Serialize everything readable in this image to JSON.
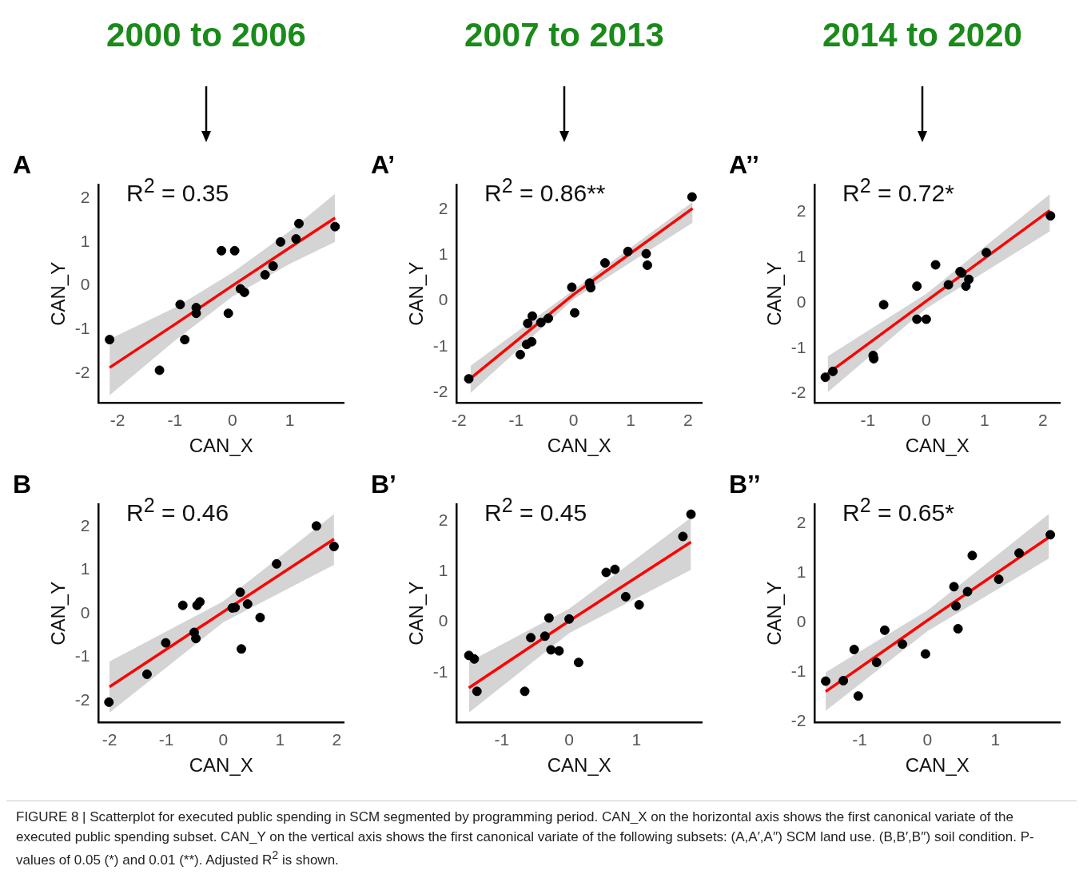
{
  "chart_data": [
    {
      "type": "scatter",
      "title": "A",
      "subtitle": "2000 to 2006",
      "xlabel": "CAN_X",
      "ylabel": "CAN_Y",
      "xlim": [
        -2.33,
        1.94
      ],
      "ylim": [
        -2.67,
        2.3
      ],
      "xticks": [
        -2,
        -1,
        0,
        1
      ],
      "yticks": [
        -2,
        -1,
        0,
        1,
        2
      ],
      "annotations": [
        "R$^{2}$ = 0.35"
      ],
      "series": [
        {
          "type": "line",
          "marker": "none",
          "color": "#ff0000",
          "x": [
            -2.14,
            -1,
            0,
            1,
            1.79
          ],
          "values": [
            -1.87,
            -0.88,
            0.0,
            0.87,
            1.55
          ],
          "lower": [
            -2.5,
            -1.25,
            -0.25,
            0.5,
            1.0
          ],
          "upper": [
            -1.22,
            -0.5,
            0.3,
            1.25,
            2.1
          ]
        },
        {
          "type": "scatter",
          "marker": "circle",
          "color": "#000000",
          "x": [
            -2.14,
            -1.27,
            -0.91,
            -0.83,
            -0.63,
            -0.63,
            -0.19,
            0.04,
            -0.07,
            0.14,
            0.21,
            0.57,
            0.71,
            0.84,
            1.11,
            1.16,
            1.79
          ],
          "values": [
            -1.23,
            -1.93,
            -0.43,
            -1.23,
            -0.5,
            -0.63,
            0.8,
            0.8,
            -0.63,
            -0.07,
            -0.15,
            0.25,
            0.45,
            1.0,
            1.07,
            1.42,
            1.35
          ]
        }
      ]
    },
    {
      "type": "scatter",
      "title": "A’",
      "subtitle": "2007 to 2013",
      "xlabel": "CAN_X",
      "ylabel": "CAN_Y",
      "xlim": [
        -2.04,
        2.24
      ],
      "ylim": [
        -2.22,
        2.53
      ],
      "xticks": [
        -2,
        -1,
        0,
        1,
        2
      ],
      "yticks": [
        -2,
        -1,
        0,
        1,
        2
      ],
      "annotations": [
        "R$^{2}$ = 0.86**"
      ],
      "series": [
        {
          "type": "line",
          "marker": "none",
          "color": "#ff0000",
          "x": [
            -1.8,
            0,
            2.08
          ],
          "values": [
            -1.69,
            0.14,
            2.02
          ],
          "lower": [
            -2.01,
            0.04,
            1.71
          ],
          "upper": [
            -1.42,
            0.24,
            2.16
          ]
        },
        {
          "type": "scatter",
          "marker": "circle",
          "color": "#000000",
          "x": [
            -1.83,
            -0.93,
            -0.82,
            -0.73,
            -0.8,
            -0.72,
            -0.57,
            -0.44,
            -0.03,
            0.02,
            0.28,
            0.3,
            0.55,
            0.95,
            1.27,
            1.29,
            2.07
          ],
          "values": [
            -1.7,
            -1.17,
            -0.95,
            -0.89,
            -0.49,
            -0.33,
            -0.47,
            -0.38,
            0.3,
            -0.26,
            0.39,
            0.29,
            0.83,
            1.08,
            1.03,
            0.78,
            2.27
          ]
        }
      ]
    },
    {
      "type": "scatter",
      "title": "A’’",
      "subtitle": "2014 to 2020",
      "xlabel": "CAN_X",
      "ylabel": "CAN_Y",
      "xlim": [
        -1.91,
        2.29
      ],
      "ylim": [
        -2.2,
        2.6
      ],
      "xticks": [
        -1,
        0,
        1,
        2
      ],
      "yticks": [
        -2,
        -1,
        0,
        1,
        2
      ],
      "annotations": [
        "R$^{2}$ = 0.72*"
      ],
      "series": [
        {
          "type": "line",
          "marker": "none",
          "color": "#ff0000",
          "x": [
            -1.69,
            0,
            2.12
          ],
          "values": [
            -1.56,
            0.04,
            2.04
          ],
          "lower": [
            -1.97,
            -0.12,
            1.58
          ],
          "upper": [
            -1.18,
            0.2,
            2.4
          ]
        },
        {
          "type": "scatter",
          "marker": "circle",
          "color": "#000000",
          "x": [
            -1.73,
            -1.6,
            -0.91,
            -0.9,
            -0.73,
            -0.16,
            -0.16,
            0.0,
            0.16,
            0.38,
            0.58,
            0.61,
            0.73,
            0.68,
            1.03,
            2.13
          ],
          "values": [
            -1.64,
            -1.51,
            -1.16,
            -1.23,
            -0.04,
            0.37,
            -0.36,
            -0.36,
            0.84,
            0.4,
            0.69,
            0.66,
            0.52,
            0.37,
            1.11,
            1.92
          ]
        }
      ]
    },
    {
      "type": "scatter",
      "title": "B",
      "xlabel": "CAN_X",
      "ylabel": "CAN_Y",
      "xlim": [
        -2.19,
        2.12
      ],
      "ylim": [
        -2.49,
        2.5
      ],
      "xticks": [
        -2,
        -1,
        0,
        1,
        2
      ],
      "yticks": [
        -2,
        -1,
        0,
        1,
        2
      ],
      "annotations": [
        "R$^{2}$ = 0.46"
      ],
      "series": [
        {
          "type": "line",
          "marker": "none",
          "color": "#ff0000",
          "x": [
            -2.0,
            0,
            1.95
          ],
          "values": [
            -1.68,
            0.04,
            1.71
          ],
          "lower": [
            -2.27,
            -0.2,
            1.12
          ],
          "upper": [
            -1.1,
            0.28,
            2.28
          ]
        },
        {
          "type": "scatter",
          "marker": "circle",
          "color": "#000000",
          "x": [
            -2.01,
            -1.34,
            -1.01,
            -0.71,
            -0.51,
            -0.48,
            -0.46,
            -0.41,
            0.16,
            0.21,
            0.3,
            0.43,
            0.32,
            0.65,
            0.94,
            1.64,
            1.95
          ],
          "values": [
            -2.03,
            -1.39,
            -0.67,
            0.19,
            -0.43,
            -0.57,
            0.19,
            0.27,
            0.13,
            0.14,
            0.49,
            0.22,
            -0.81,
            -0.09,
            1.14,
            2.01,
            1.54
          ]
        }
      ]
    },
    {
      "type": "scatter",
      "title": "B’",
      "xlabel": "CAN_X",
      "ylabel": "CAN_Y",
      "xlim": [
        -1.67,
        1.97
      ],
      "ylim": [
        -1.98,
        2.32
      ],
      "xticks": [
        -1,
        0,
        1
      ],
      "yticks": [
        -1,
        0,
        1,
        2
      ],
      "annotations": [
        "R$^{2}$ = 0.45"
      ],
      "series": [
        {
          "type": "line",
          "marker": "none",
          "color": "#ff0000",
          "x": [
            -1.49,
            0,
            1.81
          ],
          "values": [
            -1.3,
            0.02,
            1.58
          ],
          "lower": [
            -1.79,
            -0.22,
            1.03
          ],
          "upper": [
            -0.79,
            0.26,
            2.06
          ]
        },
        {
          "type": "scatter",
          "marker": "circle",
          "color": "#000000",
          "x": [
            -1.49,
            -1.41,
            -1.37,
            -0.66,
            -0.57,
            -0.36,
            -0.3,
            -0.27,
            -0.15,
            0.0,
            0.14,
            0.55,
            0.68,
            0.84,
            1.04,
            1.69,
            1.81
          ],
          "values": [
            -0.66,
            -0.73,
            -1.37,
            -1.37,
            -0.31,
            -0.28,
            0.08,
            -0.55,
            -0.57,
            0.06,
            -0.8,
            0.98,
            1.04,
            0.5,
            0.34,
            1.69,
            2.13
          ]
        }
      ]
    },
    {
      "type": "scatter",
      "title": "B’’",
      "xlabel": "CAN_X",
      "ylabel": "CAN_Y",
      "xlim": [
        -1.66,
        1.95
      ],
      "ylim": [
        -2.02,
        2.38
      ],
      "xticks": [
        -1,
        0,
        1
      ],
      "yticks": [
        -2,
        -1,
        0,
        1,
        2
      ],
      "annotations": [
        "R$^{2}$ = 0.65*",
        "FIGURE 8 | Scatterplot for executed public spending in SCM segmented by programming period. CAN_X on the horizontal axis shows the first canonical variate of the executed public spending subset. CAN_Y on the vertical axis shows the first canonical variate of the following subsets: (A,A′,A′′) SCM land use. (B,B′,B′′) soil condition. P-values of 0.05 (*) and 0.01 (**). Adjusted R$^{2}$ is shown."
      ],
      "series": [
        {
          "type": "line",
          "marker": "none",
          "color": "#ff0000",
          "x": [
            -1.5,
            0,
            1.79
          ],
          "values": [
            -1.4,
            0.04,
            1.72
          ],
          "lower": [
            -1.79,
            -0.18,
            1.29
          ],
          "upper": [
            -1.01,
            0.24,
            2.19
          ]
        },
        {
          "type": "scatter",
          "marker": "circle",
          "color": "#000000",
          "x": [
            -1.5,
            -1.24,
            -1.02,
            -1.08,
            -0.75,
            -0.63,
            -0.37,
            -0.03,
            0.39,
            0.42,
            0.45,
            0.59,
            0.66,
            1.05,
            1.35,
            1.81
          ],
          "values": [
            -1.19,
            -1.18,
            -1.49,
            -0.55,
            -0.81,
            -0.16,
            -0.44,
            -0.64,
            0.72,
            0.33,
            -0.13,
            0.62,
            1.35,
            0.87,
            1.4,
            1.77
          ]
        }
      ]
    }
  ]
}
